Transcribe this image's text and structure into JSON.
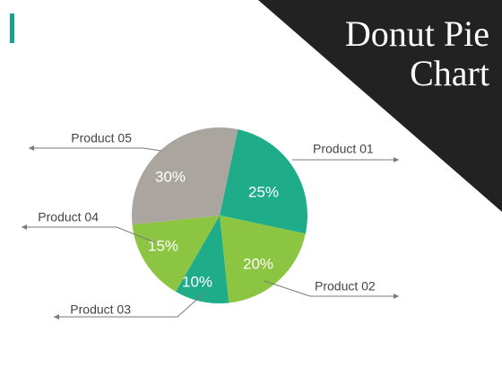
{
  "slide": {
    "title_lines": [
      "Donut Pie",
      "Chart"
    ]
  },
  "colors": {
    "accent": "#1aa387",
    "corner": "#222222",
    "teal": "#1fad89",
    "green": "#8cc541",
    "gray": "#aaa59f",
    "label_text": "#ffffff",
    "callout_text": "#444444",
    "leader": "#7a7a7a"
  },
  "chart_data": {
    "type": "pie",
    "title": "Donut Pie Chart",
    "slices": [
      {
        "label": "Product 01",
        "value": 25,
        "display": "25%",
        "color": "#1fad89"
      },
      {
        "label": "Product 02",
        "value": 20,
        "display": "20%",
        "color": "#8cc541"
      },
      {
        "label": "Product 03",
        "value": 10,
        "display": "10%",
        "color": "#1fad89"
      },
      {
        "label": "Product 04",
        "value": 15,
        "display": "15%",
        "color": "#8cc541"
      },
      {
        "label": "Product 05",
        "value": 30,
        "display": "30%",
        "color": "#aaa59f"
      }
    ],
    "start_angle_deg": 12,
    "direction": "clockwise"
  }
}
